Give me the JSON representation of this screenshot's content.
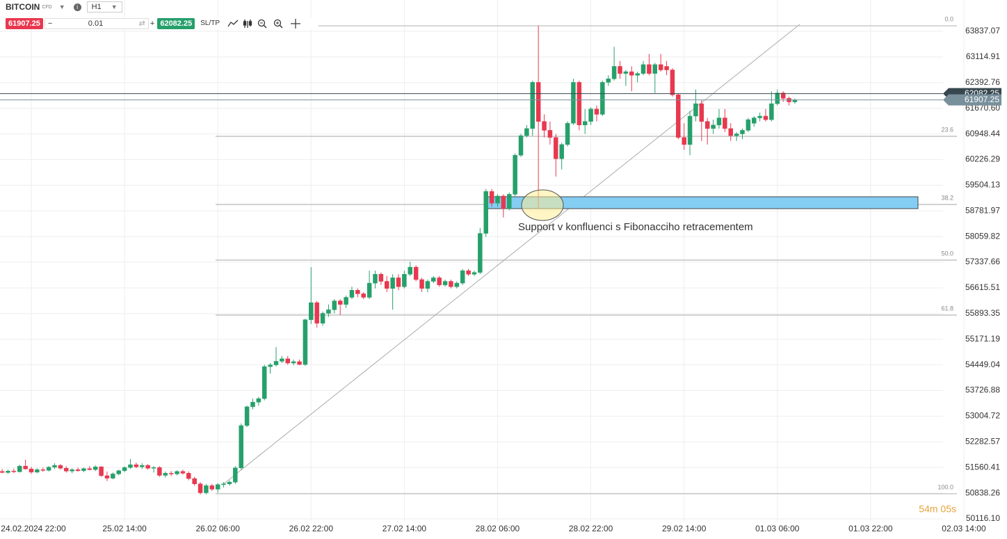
{
  "toolbar": {
    "symbol": "BITCOIN",
    "instrument_type": "CFD",
    "timeframe": "H1",
    "quantity": "0.01",
    "sltp": "SL/TP"
  },
  "chart_data": {
    "type": "candlestick",
    "annotation": "Support v konfluenci s Fibonacciho retracementem",
    "timer": "54m 05s",
    "bid": 61907.25,
    "ask": 62082.25,
    "zone": {
      "high": 59180,
      "low": 58846
    },
    "fib_levels": [
      {
        "label": "0.0",
        "price": 63993
      },
      {
        "label": "23.6",
        "price": 60882
      },
      {
        "label": "38.2",
        "price": 58964
      },
      {
        "label": "50.0",
        "price": 57398
      },
      {
        "label": "61.8",
        "price": 55852
      },
      {
        "label": "100.0",
        "price": 50822
      }
    ],
    "xlim": [
      -0.37,
      172.4
    ],
    "xticks": [
      {
        "value": 5,
        "label": "24.02.2024 22:00"
      },
      {
        "value": 21,
        "label": "25.02 14:00"
      },
      {
        "value": 37,
        "label": "26.02 06:00"
      },
      {
        "value": 53,
        "label": "26.02 22:00"
      },
      {
        "value": 69,
        "label": "27.02 14:00"
      },
      {
        "value": 85,
        "label": "28.02 06:00"
      },
      {
        "value": 101,
        "label": "28.02 22:00"
      },
      {
        "value": 117,
        "label": "29.02 14:00"
      },
      {
        "value": 133,
        "label": "01.03 06:00"
      },
      {
        "value": 149,
        "label": "01.03 22:00"
      },
      {
        "value": 165,
        "label": "02.03 14:00"
      }
    ],
    "ylim": [
      50038,
      64718
    ],
    "yticks": [
      63837.07,
      63114.91,
      62392.76,
      {
        "value": 61670.6,
        "label": "61670.60"
      },
      60948.44,
      60226.29,
      59504.13,
      58781.97,
      58059.82,
      57337.66,
      56615.51,
      55893.35,
      55171.19,
      54449.04,
      53726.88,
      53004.72,
      52282.57,
      51560.41,
      50838.26,
      {
        "value": 50116.1,
        "label": "50116.10"
      }
    ],
    "grid": true,
    "up_color": "#26a06b",
    "down_color": "#e8384f",
    "candles": [
      [
        51450,
        51520,
        51400,
        51420
      ],
      [
        51420,
        51500,
        51380,
        51460
      ],
      [
        51460,
        51530,
        51400,
        51440
      ],
      [
        51440,
        51640,
        51420,
        51600
      ],
      [
        51600,
        51780,
        51500,
        51520
      ],
      [
        51520,
        51580,
        51380,
        51430
      ],
      [
        51430,
        51540,
        51400,
        51500
      ],
      [
        51500,
        51560,
        51440,
        51480
      ],
      [
        51480,
        51600,
        51450,
        51570
      ],
      [
        51570,
        51680,
        51520,
        51620
      ],
      [
        51620,
        51660,
        51500,
        51540
      ],
      [
        51540,
        51600,
        51420,
        51460
      ],
      [
        51460,
        51540,
        51400,
        51500
      ],
      [
        51500,
        51560,
        51440,
        51470
      ],
      [
        51470,
        51560,
        51430,
        51530
      ],
      [
        51530,
        51600,
        51480,
        51500
      ],
      [
        51500,
        51620,
        51460,
        51580
      ],
      [
        51580,
        51600,
        51300,
        51330
      ],
      [
        51330,
        51450,
        51180,
        51260
      ],
      [
        51260,
        51420,
        51230,
        51380
      ],
      [
        51380,
        51500,
        51340,
        51470
      ],
      [
        51470,
        51600,
        51430,
        51560
      ],
      [
        51560,
        51800,
        51520,
        51640
      ],
      [
        51640,
        51700,
        51540,
        51580
      ],
      [
        51580,
        51680,
        51520,
        51620
      ],
      [
        51620,
        51660,
        51500,
        51540
      ],
      [
        51540,
        51600,
        51420,
        51560
      ],
      [
        51560,
        51600,
        51300,
        51340
      ],
      [
        51340,
        51450,
        51280,
        51400
      ],
      [
        51400,
        51460,
        51320,
        51380
      ],
      [
        51380,
        51480,
        51340,
        51450
      ],
      [
        51450,
        51500,
        51360,
        51400
      ],
      [
        51400,
        51450,
        51200,
        51250
      ],
      [
        51250,
        51300,
        51050,
        51100
      ],
      [
        51100,
        51150,
        50800,
        50850
      ],
      [
        50850,
        51100,
        50800,
        51050
      ],
      [
        51050,
        51100,
        50900,
        50950
      ],
      [
        50950,
        51120,
        50850,
        51080
      ],
      [
        51080,
        51150,
        51000,
        51100
      ],
      [
        51100,
        51200,
        51050,
        51150
      ],
      [
        51150,
        51600,
        51100,
        51550
      ],
      [
        51550,
        52800,
        51500,
        52740
      ],
      [
        52740,
        53300,
        52700,
        53270
      ],
      [
        53270,
        53500,
        53200,
        53400
      ],
      [
        53400,
        53550,
        53300,
        53500
      ],
      [
        53500,
        54450,
        53450,
        54400
      ],
      [
        54400,
        54500,
        54200,
        54450
      ],
      [
        54450,
        54950,
        54400,
        54550
      ],
      [
        54550,
        54700,
        54500,
        54620
      ],
      [
        54620,
        54700,
        54450,
        54500
      ],
      [
        54500,
        54600,
        54440,
        54540
      ],
      [
        54540,
        54600,
        54440,
        54460
      ],
      [
        54460,
        55750,
        54420,
        55720
      ],
      [
        55720,
        57200,
        55600,
        56200
      ],
      [
        56200,
        56250,
        55500,
        55620
      ],
      [
        55620,
        55950,
        55550,
        55900
      ],
      [
        55900,
        56150,
        55800,
        56000
      ],
      [
        56000,
        56300,
        55900,
        56250
      ],
      [
        56250,
        56300,
        55850,
        56150
      ],
      [
        56150,
        56400,
        56050,
        56350
      ],
      [
        56350,
        56650,
        56300,
        56550
      ],
      [
        56550,
        56600,
        56350,
        56450
      ],
      [
        56450,
        56500,
        56300,
        56350
      ],
      [
        56350,
        57100,
        56300,
        56750
      ],
      [
        56750,
        57100,
        56600,
        57000
      ],
      [
        57000,
        57050,
        56700,
        56800
      ],
      [
        56800,
        56950,
        56500,
        56600
      ],
      [
        56600,
        57000,
        56000,
        56900
      ],
      [
        56900,
        57000,
        56550,
        56650
      ],
      [
        56650,
        57100,
        56600,
        57000
      ],
      [
        57000,
        57350,
        56950,
        57200
      ],
      [
        57200,
        57250,
        56800,
        56850
      ],
      [
        56850,
        56900,
        56500,
        56600
      ],
      [
        56600,
        56850,
        56500,
        56800
      ],
      [
        56800,
        56950,
        56750,
        56900
      ],
      [
        56900,
        56950,
        56650,
        56700
      ],
      [
        56700,
        56850,
        56650,
        56800
      ],
      [
        56800,
        56850,
        56600,
        56650
      ],
      [
        56650,
        56800,
        56600,
        56750
      ],
      [
        56750,
        57150,
        56700,
        57100
      ],
      [
        57100,
        57150,
        56950,
        57000
      ],
      [
        57000,
        57100,
        56950,
        57050
      ],
      [
        57050,
        58300,
        57000,
        58150
      ],
      [
        58150,
        59400,
        58050,
        59330
      ],
      [
        59330,
        59400,
        58900,
        59000
      ],
      [
        59000,
        59250,
        58900,
        59200
      ],
      [
        59200,
        59250,
        58600,
        58850
      ],
      [
        58850,
        59300,
        58800,
        59250
      ],
      [
        59250,
        60400,
        59200,
        60350
      ],
      [
        60350,
        60950,
        60300,
        60900
      ],
      [
        60900,
        61200,
        60850,
        61100
      ],
      [
        61100,
        62450,
        60900,
        62400
      ],
      [
        62400,
        63993,
        58850,
        61300
      ],
      [
        61300,
        61500,
        60850,
        61050
      ],
      [
        61050,
        61300,
        60650,
        60850
      ],
      [
        60850,
        60950,
        59750,
        60250
      ],
      [
        60250,
        60700,
        59950,
        60650
      ],
      [
        60650,
        61300,
        60600,
        61250
      ],
      [
        61250,
        62500,
        61200,
        62400
      ],
      [
        62400,
        62450,
        61050,
        61200
      ],
      [
        61200,
        61650,
        60950,
        61300
      ],
      [
        61300,
        61700,
        61200,
        61650
      ],
      [
        61650,
        61750,
        61300,
        61500
      ],
      [
        61500,
        62450,
        61450,
        62400
      ],
      [
        62400,
        62600,
        62300,
        62500
      ],
      [
        62500,
        63400,
        62450,
        62850
      ],
      [
        62850,
        63000,
        62500,
        62650
      ],
      [
        62650,
        62750,
        62300,
        62700
      ],
      [
        62700,
        62850,
        62150,
        62600
      ],
      [
        62600,
        62700,
        62400,
        62650
      ],
      [
        62650,
        63000,
        62600,
        62900
      ],
      [
        62900,
        63200,
        62600,
        62650
      ],
      [
        62650,
        62950,
        62100,
        62900
      ],
      [
        62900,
        63200,
        62700,
        62750
      ],
      [
        62850,
        63000,
        62600,
        62750
      ],
      [
        62750,
        62800,
        62000,
        62050
      ],
      [
        62050,
        62100,
        60800,
        60850
      ],
      [
        60850,
        61250,
        60500,
        60650
      ],
      [
        60650,
        61600,
        60350,
        61450
      ],
      [
        61450,
        62200,
        61300,
        61800
      ],
      [
        61800,
        61900,
        60750,
        61300
      ],
      [
        61300,
        61400,
        60650,
        61100
      ],
      [
        61100,
        61350,
        60950,
        61200
      ],
      [
        61200,
        61650,
        61100,
        61400
      ],
      [
        61400,
        61650,
        61000,
        61100
      ],
      [
        61100,
        61250,
        60750,
        60900
      ],
      [
        60900,
        61000,
        60750,
        60950
      ],
      [
        60950,
        61100,
        60800,
        61050
      ],
      [
        61050,
        61400,
        61000,
        61350
      ],
      [
        61250,
        61450,
        61150,
        61400
      ],
      [
        61400,
        61550,
        61300,
        61450
      ],
      [
        61450,
        61650,
        61300,
        61350
      ],
      [
        61350,
        62150,
        61300,
        61800
      ],
      [
        61800,
        62200,
        61750,
        62100
      ],
      [
        62100,
        62150,
        61850,
        61950
      ],
      [
        61950,
        62000,
        61750,
        61850
      ],
      [
        61850,
        61950,
        61800,
        61907.25
      ]
    ]
  }
}
